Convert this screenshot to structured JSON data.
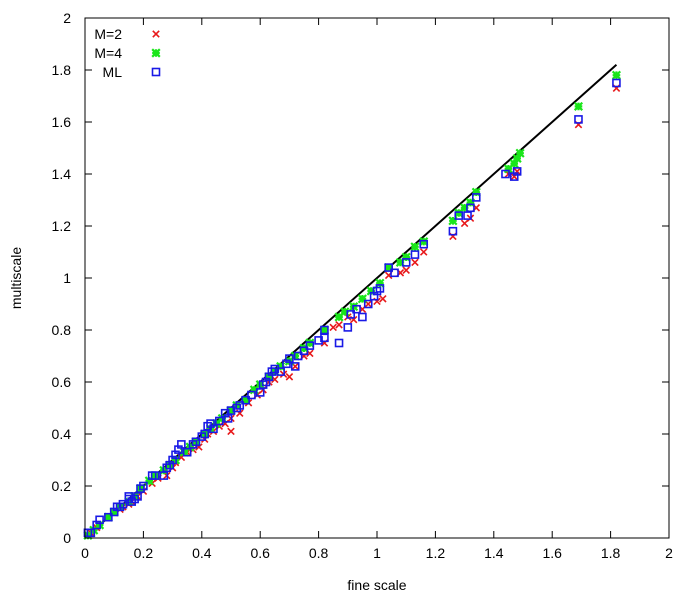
{
  "chart_data": {
    "type": "scatter",
    "title": "",
    "xlabel": "fine scale",
    "ylabel": "multiscale",
    "xlim": [
      0,
      2
    ],
    "ylim": [
      0,
      2
    ],
    "xticks": [
      0,
      0.2,
      0.4,
      0.6,
      0.8,
      1,
      1.2,
      1.4,
      1.6,
      1.8,
      2
    ],
    "yticks": [
      0,
      0.2,
      0.4,
      0.6,
      0.8,
      1,
      1.2,
      1.4,
      1.6,
      1.8,
      2
    ],
    "xtick_labels": [
      "0",
      "0.2",
      "0.4",
      "0.6",
      "0.8",
      "1",
      "1.2",
      "1.4",
      "1.6",
      "1.8",
      "2"
    ],
    "ytick_labels": [
      "0",
      "0.2",
      "0.4",
      "0.6",
      "0.8",
      "1",
      "1.2",
      "1.4",
      "1.6",
      "1.8",
      "2"
    ],
    "grid": false,
    "legend_position": "top-left",
    "reference_line": {
      "color": "#000000",
      "points": [
        [
          0,
          0
        ],
        [
          1.82,
          1.82
        ]
      ]
    },
    "series": [
      {
        "name": "M=2",
        "marker": "cross",
        "color": "#e8191b",
        "points": [
          [
            0.01,
            0.01
          ],
          [
            0.02,
            0.02
          ],
          [
            0.04,
            0.04
          ],
          [
            0.05,
            0.05
          ],
          [
            0.08,
            0.08
          ],
          [
            0.1,
            0.1
          ],
          [
            0.12,
            0.11
          ],
          [
            0.13,
            0.12
          ],
          [
            0.15,
            0.13
          ],
          [
            0.16,
            0.14
          ],
          [
            0.18,
            0.16
          ],
          [
            0.2,
            0.18
          ],
          [
            0.23,
            0.21
          ],
          [
            0.25,
            0.23
          ],
          [
            0.28,
            0.24
          ],
          [
            0.3,
            0.27
          ],
          [
            0.31,
            0.29
          ],
          [
            0.33,
            0.31
          ],
          [
            0.35,
            0.33
          ],
          [
            0.37,
            0.34
          ],
          [
            0.39,
            0.35
          ],
          [
            0.41,
            0.38
          ],
          [
            0.42,
            0.4
          ],
          [
            0.44,
            0.41
          ],
          [
            0.46,
            0.43
          ],
          [
            0.48,
            0.44
          ],
          [
            0.5,
            0.41
          ],
          [
            0.5,
            0.46
          ],
          [
            0.53,
            0.48
          ],
          [
            0.56,
            0.52
          ],
          [
            0.59,
            0.55
          ],
          [
            0.61,
            0.57
          ],
          [
            0.63,
            0.6
          ],
          [
            0.65,
            0.61
          ],
          [
            0.68,
            0.63
          ],
          [
            0.7,
            0.62
          ],
          [
            0.72,
            0.66
          ],
          [
            0.75,
            0.7
          ],
          [
            0.77,
            0.71
          ],
          [
            0.82,
            0.75
          ],
          [
            0.85,
            0.81
          ],
          [
            0.87,
            0.82
          ],
          [
            0.9,
            0.85
          ],
          [
            0.92,
            0.84
          ],
          [
            0.95,
            0.88
          ],
          [
            0.97,
            0.9
          ],
          [
            1.0,
            0.91
          ],
          [
            1.02,
            0.92
          ],
          [
            1.04,
            1.01
          ],
          [
            1.08,
            1.02
          ],
          [
            1.1,
            1.03
          ],
          [
            1.13,
            1.06
          ],
          [
            1.16,
            1.1
          ],
          [
            1.26,
            1.16
          ],
          [
            1.3,
            1.21
          ],
          [
            1.32,
            1.23
          ],
          [
            1.34,
            1.27
          ],
          [
            1.45,
            1.4
          ],
          [
            1.47,
            1.39
          ],
          [
            1.48,
            1.41
          ],
          [
            1.69,
            1.59
          ],
          [
            1.82,
            1.73
          ]
        ]
      },
      {
        "name": "M=4",
        "marker": "filled-x",
        "color": "#19e619",
        "points": [
          [
            0.01,
            0.01
          ],
          [
            0.03,
            0.03
          ],
          [
            0.05,
            0.05
          ],
          [
            0.08,
            0.08
          ],
          [
            0.1,
            0.1
          ],
          [
            0.12,
            0.12
          ],
          [
            0.15,
            0.14
          ],
          [
            0.17,
            0.16
          ],
          [
            0.19,
            0.19
          ],
          [
            0.22,
            0.22
          ],
          [
            0.24,
            0.24
          ],
          [
            0.27,
            0.26
          ],
          [
            0.29,
            0.28
          ],
          [
            0.31,
            0.3
          ],
          [
            0.34,
            0.33
          ],
          [
            0.36,
            0.35
          ],
          [
            0.38,
            0.37
          ],
          [
            0.41,
            0.4
          ],
          [
            0.43,
            0.42
          ],
          [
            0.45,
            0.44
          ],
          [
            0.47,
            0.46
          ],
          [
            0.5,
            0.49
          ],
          [
            0.52,
            0.51
          ],
          [
            0.55,
            0.53
          ],
          [
            0.58,
            0.57
          ],
          [
            0.6,
            0.59
          ],
          [
            0.63,
            0.62
          ],
          [
            0.65,
            0.64
          ],
          [
            0.67,
            0.66
          ],
          [
            0.7,
            0.68
          ],
          [
            0.72,
            0.7
          ],
          [
            0.75,
            0.73
          ],
          [
            0.77,
            0.75
          ],
          [
            0.82,
            0.8
          ],
          [
            0.87,
            0.85
          ],
          [
            0.89,
            0.87
          ],
          [
            0.92,
            0.89
          ],
          [
            0.95,
            0.92
          ],
          [
            0.98,
            0.95
          ],
          [
            1.01,
            0.98
          ],
          [
            1.04,
            1.04
          ],
          [
            1.08,
            1.06
          ],
          [
            1.1,
            1.08
          ],
          [
            1.13,
            1.12
          ],
          [
            1.16,
            1.14
          ],
          [
            1.26,
            1.22
          ],
          [
            1.28,
            1.25
          ],
          [
            1.3,
            1.27
          ],
          [
            1.32,
            1.29
          ],
          [
            1.34,
            1.33
          ],
          [
            1.45,
            1.42
          ],
          [
            1.47,
            1.44
          ],
          [
            1.48,
            1.46
          ],
          [
            1.49,
            1.48
          ],
          [
            1.69,
            1.66
          ],
          [
            1.82,
            1.78
          ]
        ]
      },
      {
        "name": "ML",
        "marker": "open-square",
        "color": "#1919e6",
        "points": [
          [
            0.01,
            0.02
          ],
          [
            0.02,
            0.02
          ],
          [
            0.04,
            0.05
          ],
          [
            0.05,
            0.07
          ],
          [
            0.08,
            0.08
          ],
          [
            0.1,
            0.1
          ],
          [
            0.11,
            0.12
          ],
          [
            0.12,
            0.12
          ],
          [
            0.13,
            0.13
          ],
          [
            0.15,
            0.15
          ],
          [
            0.15,
            0.16
          ],
          [
            0.16,
            0.14
          ],
          [
            0.17,
            0.15
          ],
          [
            0.18,
            0.16
          ],
          [
            0.19,
            0.19
          ],
          [
            0.2,
            0.2
          ],
          [
            0.23,
            0.24
          ],
          [
            0.24,
            0.24
          ],
          [
            0.27,
            0.24
          ],
          [
            0.28,
            0.27
          ],
          [
            0.29,
            0.28
          ],
          [
            0.3,
            0.3
          ],
          [
            0.31,
            0.32
          ],
          [
            0.32,
            0.34
          ],
          [
            0.33,
            0.36
          ],
          [
            0.35,
            0.33
          ],
          [
            0.37,
            0.36
          ],
          [
            0.38,
            0.37
          ],
          [
            0.4,
            0.39
          ],
          [
            0.41,
            0.4
          ],
          [
            0.42,
            0.43
          ],
          [
            0.43,
            0.44
          ],
          [
            0.44,
            0.42
          ],
          [
            0.46,
            0.45
          ],
          [
            0.48,
            0.48
          ],
          [
            0.49,
            0.46
          ],
          [
            0.5,
            0.49
          ],
          [
            0.52,
            0.5
          ],
          [
            0.53,
            0.51
          ],
          [
            0.55,
            0.53
          ],
          [
            0.57,
            0.55
          ],
          [
            0.6,
            0.56
          ],
          [
            0.61,
            0.59
          ],
          [
            0.62,
            0.6
          ],
          [
            0.63,
            0.62
          ],
          [
            0.64,
            0.64
          ],
          [
            0.65,
            0.65
          ],
          [
            0.67,
            0.64
          ],
          [
            0.69,
            0.67
          ],
          [
            0.7,
            0.69
          ],
          [
            0.72,
            0.66
          ],
          [
            0.73,
            0.7
          ],
          [
            0.75,
            0.72
          ],
          [
            0.77,
            0.74
          ],
          [
            0.8,
            0.76
          ],
          [
            0.82,
            0.77
          ],
          [
            0.82,
            0.8
          ],
          [
            0.87,
            0.75
          ],
          [
            0.9,
            0.81
          ],
          [
            0.91,
            0.86
          ],
          [
            0.93,
            0.88
          ],
          [
            0.95,
            0.85
          ],
          [
            0.97,
            0.9
          ],
          [
            0.99,
            0.93
          ],
          [
            1.0,
            0.95
          ],
          [
            1.01,
            0.96
          ],
          [
            1.04,
            1.04
          ],
          [
            1.06,
            1.02
          ],
          [
            1.1,
            1.06
          ],
          [
            1.13,
            1.09
          ],
          [
            1.16,
            1.13
          ],
          [
            1.26,
            1.18
          ],
          [
            1.28,
            1.24
          ],
          [
            1.31,
            1.24
          ],
          [
            1.32,
            1.27
          ],
          [
            1.34,
            1.31
          ],
          [
            1.44,
            1.4
          ],
          [
            1.47,
            1.39
          ],
          [
            1.48,
            1.41
          ],
          [
            1.69,
            1.61
          ],
          [
            1.82,
            1.75
          ]
        ]
      }
    ]
  }
}
